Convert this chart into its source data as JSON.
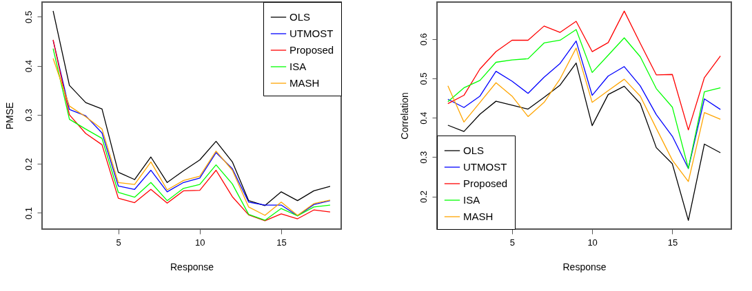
{
  "chart_data": [
    {
      "type": "line",
      "xlabel": "Response",
      "ylabel": "PMSE",
      "x": [
        1,
        2,
        3,
        4,
        5,
        6,
        7,
        8,
        9,
        10,
        11,
        12,
        13,
        14,
        15,
        16,
        17,
        18
      ],
      "xlim": [
        0.32,
        18.68
      ],
      "ylim": [
        0.067,
        0.53
      ],
      "xticks": [
        5,
        10,
        15
      ],
      "yticks": [
        0.1,
        0.2,
        0.3,
        0.4,
        0.5
      ],
      "legend": "top right",
      "series": [
        {
          "name": "OLS",
          "color": "#000000",
          "values": [
            0.512,
            0.36,
            0.325,
            0.312,
            0.183,
            0.168,
            0.214,
            0.162,
            0.186,
            0.208,
            0.246,
            0.204,
            0.125,
            0.115,
            0.143,
            0.125,
            0.145,
            0.154
          ]
        },
        {
          "name": "UTMOST",
          "color": "#0000ff",
          "values": [
            0.452,
            0.311,
            0.298,
            0.263,
            0.155,
            0.148,
            0.187,
            0.143,
            0.162,
            0.171,
            0.223,
            0.19,
            0.122,
            0.116,
            0.116,
            0.094,
            0.117,
            0.125
          ]
        },
        {
          "name": "Proposed",
          "color": "#ff0000",
          "values": [
            0.453,
            0.3,
            0.262,
            0.239,
            0.13,
            0.121,
            0.148,
            0.12,
            0.145,
            0.146,
            0.187,
            0.133,
            0.096,
            0.084,
            0.098,
            0.088,
            0.106,
            0.102
          ]
        },
        {
          "name": "ISA",
          "color": "#00ff00",
          "values": [
            0.435,
            0.291,
            0.271,
            0.252,
            0.142,
            0.132,
            0.162,
            0.125,
            0.15,
            0.158,
            0.198,
            0.159,
            0.097,
            0.085,
            0.109,
            0.094,
            0.112,
            0.116
          ]
        },
        {
          "name": "MASH",
          "color": "#ffa500",
          "values": [
            0.415,
            0.318,
            0.296,
            0.271,
            0.162,
            0.158,
            0.204,
            0.147,
            0.166,
            0.175,
            0.226,
            0.187,
            0.112,
            0.095,
            0.122,
            0.095,
            0.119,
            0.126
          ]
        }
      ]
    },
    {
      "type": "line",
      "xlabel": "Response",
      "ylabel": "Correlation",
      "x": [
        1,
        2,
        3,
        4,
        5,
        6,
        7,
        8,
        9,
        10,
        11,
        12,
        13,
        14,
        15,
        16,
        17,
        18
      ],
      "xlim": [
        0.32,
        18.68
      ],
      "ylim": [
        0.117,
        0.694
      ],
      "xticks": [
        5,
        10,
        15
      ],
      "yticks": [
        0.2,
        0.3,
        0.4,
        0.5,
        0.6
      ],
      "legend": "bottom left",
      "series": [
        {
          "name": "OLS",
          "color": "#000000",
          "values": [
            0.381,
            0.365,
            0.409,
            0.442,
            0.432,
            0.422,
            0.452,
            0.483,
            0.539,
            0.38,
            0.459,
            0.48,
            0.436,
            0.324,
            0.283,
            0.139,
            0.333,
            0.311
          ]
        },
        {
          "name": "UTMOST",
          "color": "#0000ff",
          "values": [
            0.447,
            0.426,
            0.455,
            0.518,
            0.493,
            0.462,
            0.503,
            0.538,
            0.595,
            0.457,
            0.506,
            0.53,
            0.481,
            0.408,
            0.353,
            0.271,
            0.448,
            0.421
          ]
        },
        {
          "name": "Proposed",
          "color": "#ff0000",
          "values": [
            0.436,
            0.457,
            0.524,
            0.568,
            0.597,
            0.597,
            0.633,
            0.617,
            0.645,
            0.568,
            0.591,
            0.671,
            0.589,
            0.509,
            0.51,
            0.369,
            0.502,
            0.557
          ]
        },
        {
          "name": "ISA",
          "color": "#00ff00",
          "values": [
            0.441,
            0.476,
            0.495,
            0.541,
            0.547,
            0.55,
            0.59,
            0.597,
            0.624,
            0.515,
            0.559,
            0.603,
            0.555,
            0.474,
            0.427,
            0.271,
            0.466,
            0.476
          ]
        },
        {
          "name": "MASH",
          "color": "#ffa500",
          "values": [
            0.481,
            0.389,
            0.439,
            0.489,
            0.455,
            0.403,
            0.439,
            0.499,
            0.577,
            0.439,
            0.469,
            0.498,
            0.455,
            0.373,
            0.292,
            0.238,
            0.413,
            0.396
          ]
        }
      ]
    }
  ]
}
